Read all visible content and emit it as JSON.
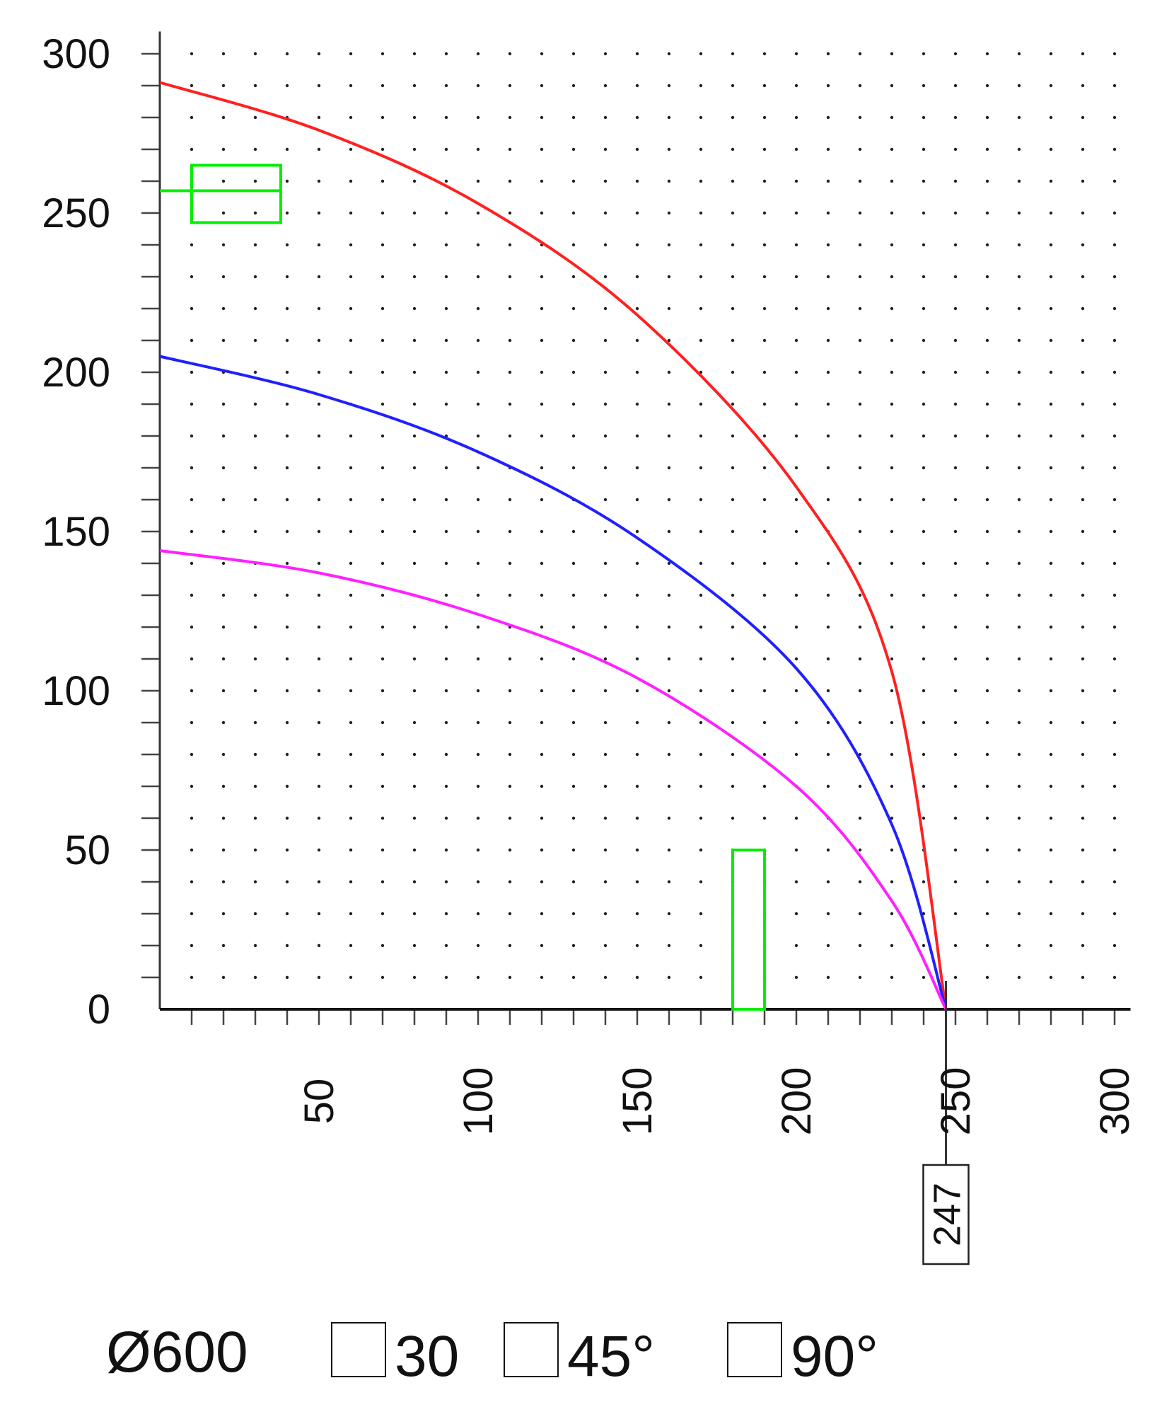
{
  "chart_data": {
    "type": "line",
    "xlim": [
      0,
      300
    ],
    "ylim": [
      0,
      300
    ],
    "x_ticks": [
      50,
      100,
      150,
      200,
      250,
      300
    ],
    "y_ticks": [
      0,
      50,
      100,
      150,
      200,
      250,
      300
    ],
    "minor_tick_step": 10,
    "grid": "dotted",
    "series": [
      {
        "color": "#ff2020",
        "points": [
          [
            0,
            291
          ],
          [
            50,
            276
          ],
          [
            100,
            253
          ],
          [
            150,
            218
          ],
          [
            200,
            164
          ],
          [
            230,
            106
          ],
          [
            247,
            0
          ]
        ]
      },
      {
        "color": "#2020ff",
        "points": [
          [
            0,
            205
          ],
          [
            50,
            193
          ],
          [
            100,
            175
          ],
          [
            150,
            148
          ],
          [
            200,
            107
          ],
          [
            230,
            58
          ],
          [
            247,
            0
          ]
        ]
      },
      {
        "color": "#ff20ff",
        "points": [
          [
            0,
            144
          ],
          [
            50,
            137
          ],
          [
            100,
            124
          ],
          [
            150,
            104
          ],
          [
            200,
            70
          ],
          [
            230,
            34
          ],
          [
            247,
            0
          ]
        ]
      }
    ],
    "overlays": [
      {
        "kind": "rect",
        "color": "#00ee00",
        "x": [
          10,
          38
        ],
        "y": [
          247,
          265
        ]
      },
      {
        "kind": "hline",
        "color": "#00ee00",
        "x": [
          0,
          38
        ],
        "y": 257
      },
      {
        "kind": "rect",
        "color": "#00ee00",
        "x": [
          180,
          190
        ],
        "y": [
          0,
          50
        ]
      }
    ],
    "marker": {
      "x": 247,
      "label": "247"
    }
  },
  "legend": {
    "title": "Ø600",
    "items": [
      {
        "label": "30"
      },
      {
        "label": "45°"
      },
      {
        "label": "90°"
      }
    ]
  }
}
